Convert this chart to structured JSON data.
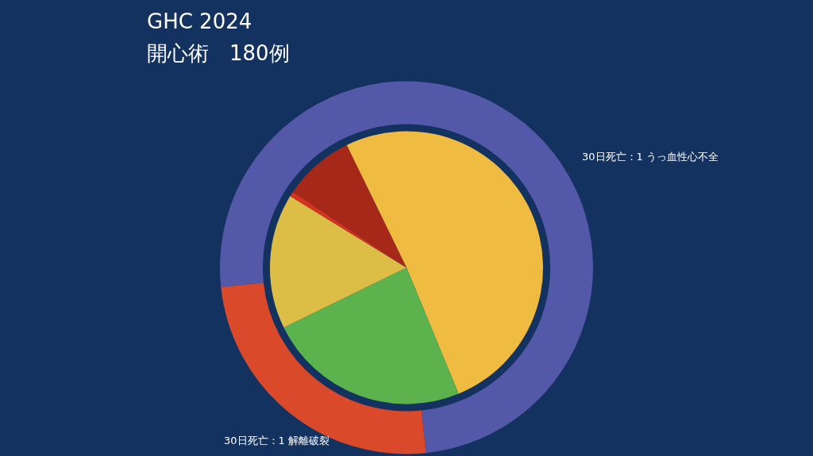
{
  "chart_data": [
    {
      "type": "donut",
      "title": "GHC 2024",
      "subtitle": "開心術　180例",
      "categories": [
        "30日死亡：1 うっ血性心不全",
        "30日死亡：1 解離破裂"
      ],
      "values": [
        75,
        25
      ],
      "colors": [
        "#5458a8",
        "#d9492a"
      ]
    },
    {
      "type": "pie",
      "categories": [
        null,
        null,
        null,
        null,
        null
      ],
      "values": [
        51,
        24,
        16,
        0.6,
        8.4
      ],
      "colors": [
        "#efbb40",
        "#5cb34e",
        "#dcbd45",
        "#d7321f",
        "#a62818"
      ]
    }
  ]
}
